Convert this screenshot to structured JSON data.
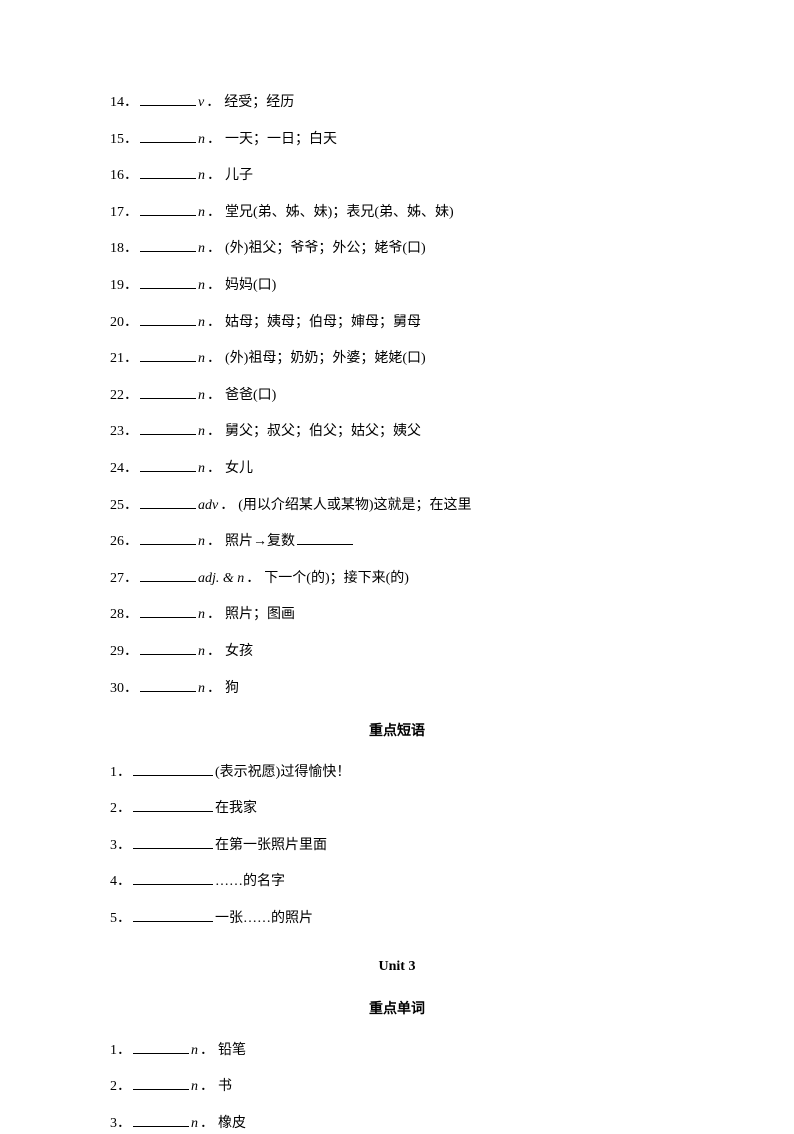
{
  "section1": {
    "items": [
      {
        "num": "14．",
        "pos": "v",
        "def": "经受；经历"
      },
      {
        "num": "15．",
        "pos": "n",
        "def": "一天；一日；白天"
      },
      {
        "num": "16．",
        "pos": "n",
        "def": "儿子"
      },
      {
        "num": "17．",
        "pos": "n",
        "def": "堂兄(弟、姊、妹)；表兄(弟、姊、妹)"
      },
      {
        "num": "18．",
        "pos": "n",
        "def": "(外)祖父；爷爷；外公；姥爷(口)"
      },
      {
        "num": "19．",
        "pos": "n",
        "def": "妈妈(口)"
      },
      {
        "num": "20．",
        "pos": "n",
        "def": "姑母；姨母；伯母；婶母；舅母"
      },
      {
        "num": "21．",
        "pos": "n",
        "def": "(外)祖母；奶奶；外婆；姥姥(口)"
      },
      {
        "num": "22．",
        "pos": "n",
        "def": "爸爸(口)"
      },
      {
        "num": "23．",
        "pos": "n",
        "def": "舅父；叔父；伯父；姑父；姨父"
      },
      {
        "num": "24．",
        "pos": "n",
        "def": "女儿"
      },
      {
        "num": "25．",
        "pos": "adv",
        "def": "(用以介绍某人或某物)这就是；在这里"
      },
      {
        "num": "26．",
        "pos": "n",
        "def": "照片→复数",
        "hasSecondBlank": true
      },
      {
        "num": "27．",
        "pos": "adj. & n",
        "def": "下一个(的)；接下来(的)"
      },
      {
        "num": "28．",
        "pos": "n",
        "def": "照片；图画"
      },
      {
        "num": "29．",
        "pos": "n",
        "def": "女孩"
      },
      {
        "num": "30．",
        "pos": "n",
        "def": "狗"
      }
    ]
  },
  "section2": {
    "heading": "重点短语",
    "items": [
      {
        "num": "1．",
        "def": "(表示祝愿)过得愉快！"
      },
      {
        "num": "2．",
        "def": "在我家"
      },
      {
        "num": "3．",
        "def": "在第一张照片里面"
      },
      {
        "num": "4．",
        "def": "……的名字"
      },
      {
        "num": "5．",
        "def": "一张……的照片"
      }
    ]
  },
  "unit3": {
    "title": "Unit 3",
    "heading": "重点单词",
    "items": [
      {
        "num": "1．",
        "pos": "n",
        "def": "铅笔"
      },
      {
        "num": "2．",
        "pos": "n",
        "def": "书"
      },
      {
        "num": "3．",
        "pos": "n",
        "def": "橡皮"
      }
    ]
  }
}
